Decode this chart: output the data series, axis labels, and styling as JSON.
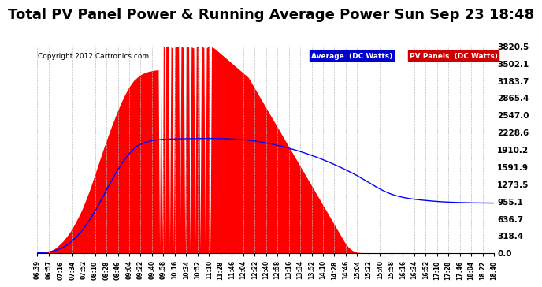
{
  "title": "Total PV Panel Power & Running Average Power Sun Sep 23 18:48",
  "copyright": "Copyright 2012 Cartronics.com",
  "legend_labels": [
    "Average  (DC Watts)",
    "PV Panels  (DC Watts)"
  ],
  "legend_bg_colors": [
    "#0000cc",
    "#cc0000"
  ],
  "yticks": [
    0.0,
    318.4,
    636.7,
    955.1,
    1273.5,
    1591.9,
    1910.2,
    2228.6,
    2547.0,
    2865.4,
    3183.7,
    3502.1,
    3820.5
  ],
  "ymax": 3820.5,
  "ymin": 0.0,
  "bar_color": "#ff0000",
  "line_color": "#0000ff",
  "background_color": "#ffffff",
  "grid_color": "#bbbbbb",
  "title_fontsize": 13,
  "pv_data": [
    [
      399,
      0
    ],
    [
      402,
      2
    ],
    [
      405,
      5
    ],
    [
      408,
      8
    ],
    [
      412,
      15
    ],
    [
      416,
      25
    ],
    [
      420,
      40
    ],
    [
      424,
      60
    ],
    [
      428,
      90
    ],
    [
      432,
      130
    ],
    [
      436,
      175
    ],
    [
      440,
      220
    ],
    [
      444,
      280
    ],
    [
      448,
      340
    ],
    [
      452,
      410
    ],
    [
      456,
      490
    ],
    [
      460,
      575
    ],
    [
      464,
      665
    ],
    [
      468,
      760
    ],
    [
      472,
      870
    ],
    [
      476,
      990
    ],
    [
      480,
      1110
    ],
    [
      484,
      1240
    ],
    [
      488,
      1380
    ],
    [
      492,
      1520
    ],
    [
      496,
      1660
    ],
    [
      500,
      1800
    ],
    [
      504,
      1940
    ],
    [
      508,
      2070
    ],
    [
      512,
      2200
    ],
    [
      516,
      2330
    ],
    [
      520,
      2450
    ],
    [
      524,
      2570
    ],
    [
      528,
      2680
    ],
    [
      532,
      2790
    ],
    [
      536,
      2890
    ],
    [
      540,
      2980
    ],
    [
      544,
      3060
    ],
    [
      548,
      3130
    ],
    [
      552,
      3190
    ],
    [
      556,
      3230
    ],
    [
      560,
      3270
    ],
    [
      564,
      3300
    ],
    [
      568,
      3320
    ],
    [
      572,
      3340
    ],
    [
      576,
      3350
    ],
    [
      580,
      3360
    ],
    [
      584,
      3370
    ],
    [
      588,
      3375
    ],
    [
      590,
      3380
    ],
    [
      592,
      100
    ],
    [
      594,
      3780
    ],
    [
      596,
      200
    ],
    [
      598,
      3800
    ],
    [
      600,
      3810
    ],
    [
      601,
      50
    ],
    [
      602,
      3810
    ],
    [
      604,
      3820
    ],
    [
      606,
      3810
    ],
    [
      608,
      100
    ],
    [
      610,
      3800
    ],
    [
      612,
      3780
    ],
    [
      614,
      50
    ],
    [
      616,
      3790
    ],
    [
      618,
      3800
    ],
    [
      620,
      3810
    ],
    [
      622,
      3820
    ],
    [
      624,
      50
    ],
    [
      626,
      3810
    ],
    [
      628,
      3800
    ],
    [
      630,
      3780
    ],
    [
      632,
      100
    ],
    [
      634,
      3790
    ],
    [
      636,
      3800
    ],
    [
      638,
      3810
    ],
    [
      640,
      50
    ],
    [
      642,
      3800
    ],
    [
      644,
      3790
    ],
    [
      646,
      3780
    ],
    [
      648,
      200
    ],
    [
      650,
      3800
    ],
    [
      652,
      3810
    ],
    [
      654,
      3820
    ],
    [
      656,
      50
    ],
    [
      658,
      3810
    ],
    [
      660,
      3800
    ],
    [
      662,
      3790
    ],
    [
      664,
      200
    ],
    [
      666,
      3780
    ],
    [
      668,
      3800
    ],
    [
      670,
      3810
    ],
    [
      672,
      50
    ],
    [
      674,
      3800
    ],
    [
      676,
      3790
    ],
    [
      678,
      3780
    ],
    [
      680,
      3760
    ],
    [
      682,
      3740
    ],
    [
      684,
      3720
    ],
    [
      686,
      3700
    ],
    [
      688,
      3680
    ],
    [
      690,
      3660
    ],
    [
      692,
      3640
    ],
    [
      694,
      3620
    ],
    [
      696,
      3600
    ],
    [
      698,
      3580
    ],
    [
      700,
      3560
    ],
    [
      702,
      3540
    ],
    [
      704,
      3520
    ],
    [
      706,
      3500
    ],
    [
      708,
      3480
    ],
    [
      710,
      3460
    ],
    [
      712,
      3440
    ],
    [
      714,
      3420
    ],
    [
      716,
      3400
    ],
    [
      718,
      3380
    ],
    [
      720,
      3360
    ],
    [
      722,
      3340
    ],
    [
      724,
      3320
    ],
    [
      726,
      3300
    ],
    [
      728,
      3280
    ],
    [
      730,
      3260
    ],
    [
      732,
      3240
    ],
    [
      734,
      3200
    ],
    [
      736,
      3160
    ],
    [
      738,
      3120
    ],
    [
      740,
      3080
    ],
    [
      742,
      3040
    ],
    [
      744,
      3000
    ],
    [
      746,
      2960
    ],
    [
      748,
      2920
    ],
    [
      750,
      2880
    ],
    [
      752,
      2840
    ],
    [
      754,
      2800
    ],
    [
      756,
      2760
    ],
    [
      758,
      2720
    ],
    [
      760,
      2680
    ],
    [
      762,
      2640
    ],
    [
      764,
      2600
    ],
    [
      766,
      2560
    ],
    [
      768,
      2520
    ],
    [
      770,
      2480
    ],
    [
      772,
      2440
    ],
    [
      774,
      2400
    ],
    [
      776,
      2360
    ],
    [
      778,
      2320
    ],
    [
      780,
      2280
    ],
    [
      782,
      2240
    ],
    [
      784,
      2200
    ],
    [
      786,
      2160
    ],
    [
      788,
      2120
    ],
    [
      790,
      2080
    ],
    [
      792,
      2040
    ],
    [
      794,
      2000
    ],
    [
      796,
      1960
    ],
    [
      798,
      1920
    ],
    [
      800,
      1880
    ],
    [
      802,
      1840
    ],
    [
      804,
      1800
    ],
    [
      806,
      1760
    ],
    [
      808,
      1720
    ],
    [
      810,
      1680
    ],
    [
      812,
      1640
    ],
    [
      814,
      1600
    ],
    [
      816,
      1560
    ],
    [
      818,
      1520
    ],
    [
      820,
      1480
    ],
    [
      822,
      1440
    ],
    [
      824,
      1400
    ],
    [
      826,
      1360
    ],
    [
      828,
      1320
    ],
    [
      830,
      1280
    ],
    [
      832,
      1240
    ],
    [
      834,
      1200
    ],
    [
      836,
      1160
    ],
    [
      838,
      1120
    ],
    [
      840,
      1080
    ],
    [
      842,
      1040
    ],
    [
      844,
      1000
    ],
    [
      846,
      960
    ],
    [
      848,
      920
    ],
    [
      850,
      880
    ],
    [
      852,
      840
    ],
    [
      854,
      800
    ],
    [
      856,
      760
    ],
    [
      858,
      720
    ],
    [
      860,
      680
    ],
    [
      862,
      640
    ],
    [
      864,
      600
    ],
    [
      866,
      560
    ],
    [
      868,
      520
    ],
    [
      870,
      480
    ],
    [
      872,
      440
    ],
    [
      874,
      400
    ],
    [
      876,
      360
    ],
    [
      878,
      320
    ],
    [
      880,
      280
    ],
    [
      882,
      240
    ],
    [
      884,
      200
    ],
    [
      886,
      165
    ],
    [
      888,
      135
    ],
    [
      890,
      108
    ],
    [
      892,
      85
    ],
    [
      894,
      65
    ],
    [
      896,
      48
    ],
    [
      898,
      35
    ],
    [
      900,
      25
    ],
    [
      902,
      18
    ],
    [
      904,
      12
    ],
    [
      906,
      8
    ],
    [
      908,
      5
    ],
    [
      910,
      3
    ],
    [
      912,
      2
    ],
    [
      914,
      1
    ],
    [
      916,
      0
    ],
    [
      1120,
      0
    ]
  ],
  "avg_data": [
    [
      399,
      0
    ],
    [
      402,
      1
    ],
    [
      406,
      3
    ],
    [
      410,
      6
    ],
    [
      415,
      12
    ],
    [
      420,
      22
    ],
    [
      426,
      38
    ],
    [
      432,
      60
    ],
    [
      438,
      90
    ],
    [
      444,
      130
    ],
    [
      450,
      180
    ],
    [
      456,
      240
    ],
    [
      462,
      310
    ],
    [
      468,
      390
    ],
    [
      474,
      480
    ],
    [
      480,
      580
    ],
    [
      486,
      690
    ],
    [
      492,
      810
    ],
    [
      498,
      940
    ],
    [
      504,
      1070
    ],
    [
      510,
      1200
    ],
    [
      516,
      1330
    ],
    [
      522,
      1455
    ],
    [
      528,
      1570
    ],
    [
      534,
      1675
    ],
    [
      540,
      1770
    ],
    [
      546,
      1855
    ],
    [
      552,
      1925
    ],
    [
      558,
      1980
    ],
    [
      564,
      2010
    ],
    [
      570,
      2040
    ],
    [
      576,
      2060
    ],
    [
      582,
      2075
    ],
    [
      588,
      2085
    ],
    [
      594,
      2090
    ],
    [
      600,
      2095
    ],
    [
      606,
      2098
    ],
    [
      612,
      2100
    ],
    [
      618,
      2102
    ],
    [
      624,
      2104
    ],
    [
      630,
      2105
    ],
    [
      636,
      2106
    ],
    [
      642,
      2107
    ],
    [
      648,
      2108
    ],
    [
      654,
      2109
    ],
    [
      660,
      2110
    ],
    [
      666,
      2110
    ],
    [
      672,
      2110
    ],
    [
      678,
      2109
    ],
    [
      684,
      2108
    ],
    [
      690,
      2107
    ],
    [
      696,
      2105
    ],
    [
      702,
      2103
    ],
    [
      708,
      2100
    ],
    [
      714,
      2096
    ],
    [
      720,
      2091
    ],
    [
      726,
      2085
    ],
    [
      732,
      2078
    ],
    [
      738,
      2070
    ],
    [
      744,
      2060
    ],
    [
      750,
      2049
    ],
    [
      756,
      2037
    ],
    [
      762,
      2024
    ],
    [
      768,
      2010
    ],
    [
      774,
      1995
    ],
    [
      780,
      1979
    ],
    [
      786,
      1962
    ],
    [
      792,
      1944
    ],
    [
      798,
      1925
    ],
    [
      804,
      1905
    ],
    [
      810,
      1884
    ],
    [
      816,
      1862
    ],
    [
      822,
      1839
    ],
    [
      828,
      1815
    ],
    [
      834,
      1790
    ],
    [
      840,
      1764
    ],
    [
      846,
      1737
    ],
    [
      852,
      1709
    ],
    [
      858,
      1680
    ],
    [
      864,
      1650
    ],
    [
      870,
      1619
    ],
    [
      876,
      1587
    ],
    [
      882,
      1554
    ],
    [
      888,
      1520
    ],
    [
      894,
      1485
    ],
    [
      900,
      1449
    ],
    [
      906,
      1412
    ],
    [
      910,
      1380
    ],
    [
      914,
      1355
    ],
    [
      918,
      1328
    ],
    [
      922,
      1300
    ],
    [
      926,
      1272
    ],
    [
      930,
      1244
    ],
    [
      934,
      1216
    ],
    [
      938,
      1190
    ],
    [
      942,
      1165
    ],
    [
      946,
      1142
    ],
    [
      950,
      1120
    ],
    [
      954,
      1100
    ],
    [
      958,
      1082
    ],
    [
      962,
      1066
    ],
    [
      966,
      1052
    ],
    [
      970,
      1040
    ],
    [
      975,
      1026
    ],
    [
      980,
      1014
    ],
    [
      986,
      1002
    ],
    [
      992,
      992
    ],
    [
      998,
      983
    ],
    [
      1004,
      975
    ],
    [
      1010,
      968
    ],
    [
      1016,
      961
    ],
    [
      1022,
      955
    ],
    [
      1028,
      949
    ],
    [
      1034,
      944
    ],
    [
      1040,
      940
    ],
    [
      1046,
      936
    ],
    [
      1052,
      933
    ],
    [
      1058,
      930
    ],
    [
      1064,
      928
    ],
    [
      1070,
      926
    ],
    [
      1076,
      924
    ],
    [
      1082,
      922
    ],
    [
      1088,
      921
    ],
    [
      1094,
      920
    ],
    [
      1100,
      919
    ],
    [
      1106,
      919
    ],
    [
      1112,
      918
    ],
    [
      1120,
      917
    ]
  ],
  "xtick_labels": [
    "06:39",
    "06:57",
    "07:16",
    "07:34",
    "07:52",
    "08:10",
    "08:28",
    "08:46",
    "09:04",
    "09:22",
    "09:40",
    "09:58",
    "10:16",
    "10:34",
    "10:52",
    "11:10",
    "11:28",
    "11:46",
    "12:04",
    "12:22",
    "12:40",
    "12:58",
    "13:16",
    "13:34",
    "13:52",
    "14:10",
    "14:28",
    "14:46",
    "15:04",
    "15:22",
    "15:40",
    "15:58",
    "16:16",
    "16:34",
    "16:52",
    "17:10",
    "17:28",
    "17:46",
    "18:04",
    "18:22",
    "18:40"
  ],
  "xtick_minutes": [
    399,
    417,
    436,
    454,
    472,
    490,
    508,
    526,
    544,
    562,
    580,
    598,
    616,
    634,
    652,
    670,
    688,
    706,
    724,
    742,
    760,
    778,
    796,
    814,
    832,
    850,
    868,
    886,
    904,
    922,
    940,
    958,
    976,
    994,
    1012,
    1030,
    1048,
    1066,
    1084,
    1102,
    1120
  ]
}
